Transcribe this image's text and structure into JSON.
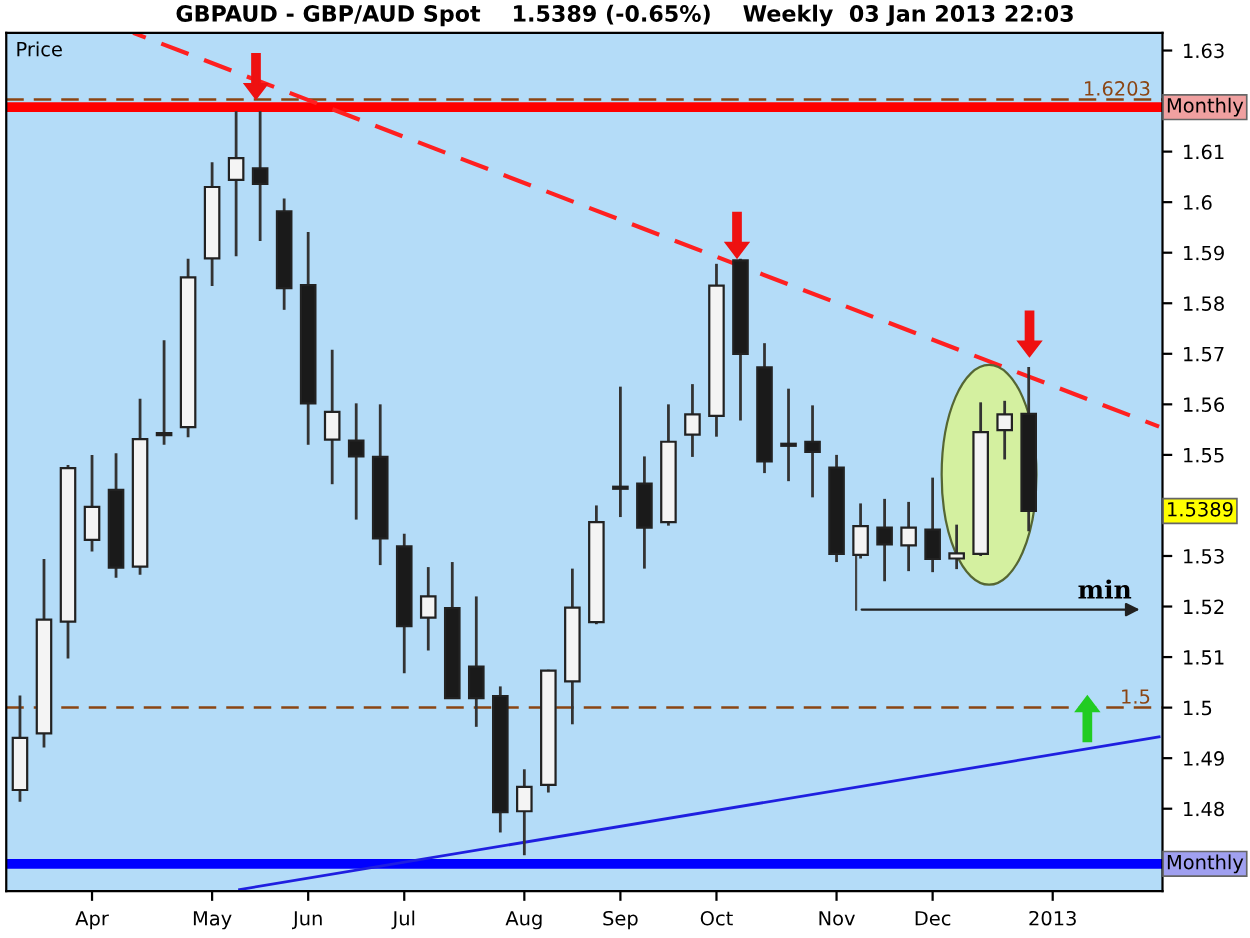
{
  "chart_data": {
    "type": "candlestick",
    "title": "GBPAUD - GBP/AUD Spot    1.5389 (-0.65%)    Weekly  03 Jan 2013 22:03",
    "ylabel": "Price",
    "x": [
      "2012-03-12",
      "2012-03-19",
      "2012-03-26",
      "2012-04-02",
      "2012-04-09",
      "2012-04-16",
      "2012-04-23",
      "2012-04-30",
      "2012-05-07",
      "2012-05-14",
      "2012-05-21",
      "2012-05-28",
      "2012-06-04",
      "2012-06-11",
      "2012-06-18",
      "2012-06-25",
      "2012-07-02",
      "2012-07-09",
      "2012-07-16",
      "2012-07-23",
      "2012-07-30",
      "2012-08-06",
      "2012-08-13",
      "2012-08-20",
      "2012-08-27",
      "2012-09-03",
      "2012-09-10",
      "2012-09-17",
      "2012-09-24",
      "2012-10-01",
      "2012-10-08",
      "2012-10-15",
      "2012-10-22",
      "2012-10-29",
      "2012-11-05",
      "2012-11-12",
      "2012-11-19",
      "2012-11-26",
      "2012-12-03",
      "2012-12-10",
      "2012-12-17",
      "2012-12-24",
      "2012-12-31"
    ],
    "ohlc": [
      [
        1.4837,
        1.5024,
        1.4814,
        1.494
      ],
      [
        1.4949,
        1.5294,
        1.4921,
        1.5174
      ],
      [
        1.517,
        1.548,
        1.5097,
        1.5474
      ],
      [
        1.5332,
        1.55,
        1.5309,
        1.5397
      ],
      [
        1.5431,
        1.5503,
        1.5257,
        1.5277
      ],
      [
        1.5279,
        1.5611,
        1.5263,
        1.5531
      ],
      [
        1.5543,
        1.5727,
        1.552,
        1.5539
      ],
      [
        1.5555,
        1.5888,
        1.5535,
        1.5851
      ],
      [
        1.5889,
        1.6079,
        1.5834,
        1.603
      ],
      [
        1.6044,
        1.618,
        1.5893,
        1.6087
      ],
      [
        1.6067,
        1.618,
        1.5923,
        1.6036
      ],
      [
        1.5982,
        1.6007,
        1.5787,
        1.583
      ],
      [
        1.5836,
        1.5941,
        1.552,
        1.5602
      ],
      [
        1.553,
        1.5708,
        1.5442,
        1.5585
      ],
      [
        1.5528,
        1.5602,
        1.5372,
        1.5497
      ],
      [
        1.5496,
        1.56,
        1.5282,
        1.5335
      ],
      [
        1.5319,
        1.5344,
        1.5068,
        1.5161
      ],
      [
        1.5178,
        1.5278,
        1.5113,
        1.522
      ],
      [
        1.5197,
        1.5288,
        1.5019,
        1.5019
      ],
      [
        1.5081,
        1.522,
        1.4962,
        1.5019
      ],
      [
        1.5023,
        1.5042,
        1.4753,
        1.4793
      ],
      [
        1.4795,
        1.4878,
        1.4708,
        1.4843
      ],
      [
        1.4847,
        1.5075,
        1.4832,
        1.5073
      ],
      [
        1.5052,
        1.5275,
        1.4967,
        1.5198
      ],
      [
        1.5169,
        1.54,
        1.5165,
        1.5367
      ],
      [
        1.5437,
        1.5635,
        1.5377,
        1.5433
      ],
      [
        1.5443,
        1.5497,
        1.5275,
        1.5356
      ],
      [
        1.5367,
        1.56,
        1.536,
        1.5526
      ],
      [
        1.554,
        1.564,
        1.5496,
        1.558
      ],
      [
        1.5577,
        1.5878,
        1.5536,
        1.5835
      ],
      [
        1.5885,
        1.5888,
        1.5568,
        1.57
      ],
      [
        1.5673,
        1.5721,
        1.5464,
        1.5487
      ],
      [
        1.552,
        1.5631,
        1.5448,
        1.5518
      ],
      [
        1.5526,
        1.5598,
        1.5416,
        1.5506
      ],
      [
        1.5475,
        1.55,
        1.5288,
        1.5304
      ],
      [
        1.5302,
        1.5404,
        1.5295,
        1.5359
      ],
      [
        1.5356,
        1.5413,
        1.525,
        1.5323
      ],
      [
        1.5321,
        1.5407,
        1.527,
        1.5356
      ],
      [
        1.5352,
        1.5455,
        1.5268,
        1.5294
      ],
      [
        1.5295,
        1.5362,
        1.5274,
        1.5305
      ],
      [
        1.5304,
        1.5604,
        1.53,
        1.5545
      ],
      [
        1.5549,
        1.5607,
        1.5491,
        1.558
      ],
      [
        1.5581,
        1.5674,
        1.5349,
        1.5389
      ]
    ],
    "series": [
      {
        "type": "line",
        "x": [
          "2012-04-14",
          "2013-02-07"
        ],
        "values": [
          1.6335,
          1.5556
        ],
        "color": "#ff2020",
        "line_style": "dashed"
      },
      {
        "type": "line",
        "x": [
          "2012-05-15",
          "2013-02-07"
        ],
        "values": [
          1.464,
          1.4942
        ],
        "color": "#1f1fe0",
        "line_style": "solid"
      }
    ],
    "ref_lines": [
      {
        "axis": "y",
        "value": 1.6203,
        "label": "1.6203",
        "color": "#8b4513",
        "line_style": "dashed"
      },
      {
        "axis": "y",
        "value": 1.5,
        "label": "1.5",
        "color": "#8b4513",
        "line_style": "dashed"
      },
      {
        "axis": "y",
        "value": 1.6188,
        "label": "Monthly",
        "color": "#ff0000",
        "line_style": "solid"
      },
      {
        "axis": "y",
        "value": 1.4691,
        "label": "Monthly",
        "color": "#0000ff",
        "line_style": "solid"
      }
    ],
    "annotations": [
      "1.5389",
      "min"
    ],
    "xlim": [
      "2012-03-08",
      "2013-02-08"
    ],
    "xticks": [
      {
        "value": "2012-04-02",
        "label": "Apr"
      },
      {
        "value": "2012-05-07",
        "label": "May"
      },
      {
        "value": "2012-06-04",
        "label": "Jun"
      },
      {
        "value": "2012-07-02",
        "label": "Jul"
      },
      {
        "value": "2012-08-06",
        "label": "Aug"
      },
      {
        "value": "2012-09-03",
        "label": "Sep"
      },
      {
        "value": "2012-10-01",
        "label": "Oct"
      },
      {
        "value": "2012-11-05",
        "label": "Nov"
      },
      {
        "value": "2012-12-03",
        "label": "Dec"
      },
      {
        "value": "2013-01-07",
        "label": "2013"
      }
    ],
    "ylim": [
      1.4637,
      1.6335
    ],
    "yticks": [
      1.48,
      1.49,
      1.5,
      1.51,
      1.52,
      1.53,
      1.55,
      1.56,
      1.57,
      1.58,
      1.59,
      1.6,
      1.61,
      1.63
    ],
    "grid": false,
    "legend": false
  }
}
